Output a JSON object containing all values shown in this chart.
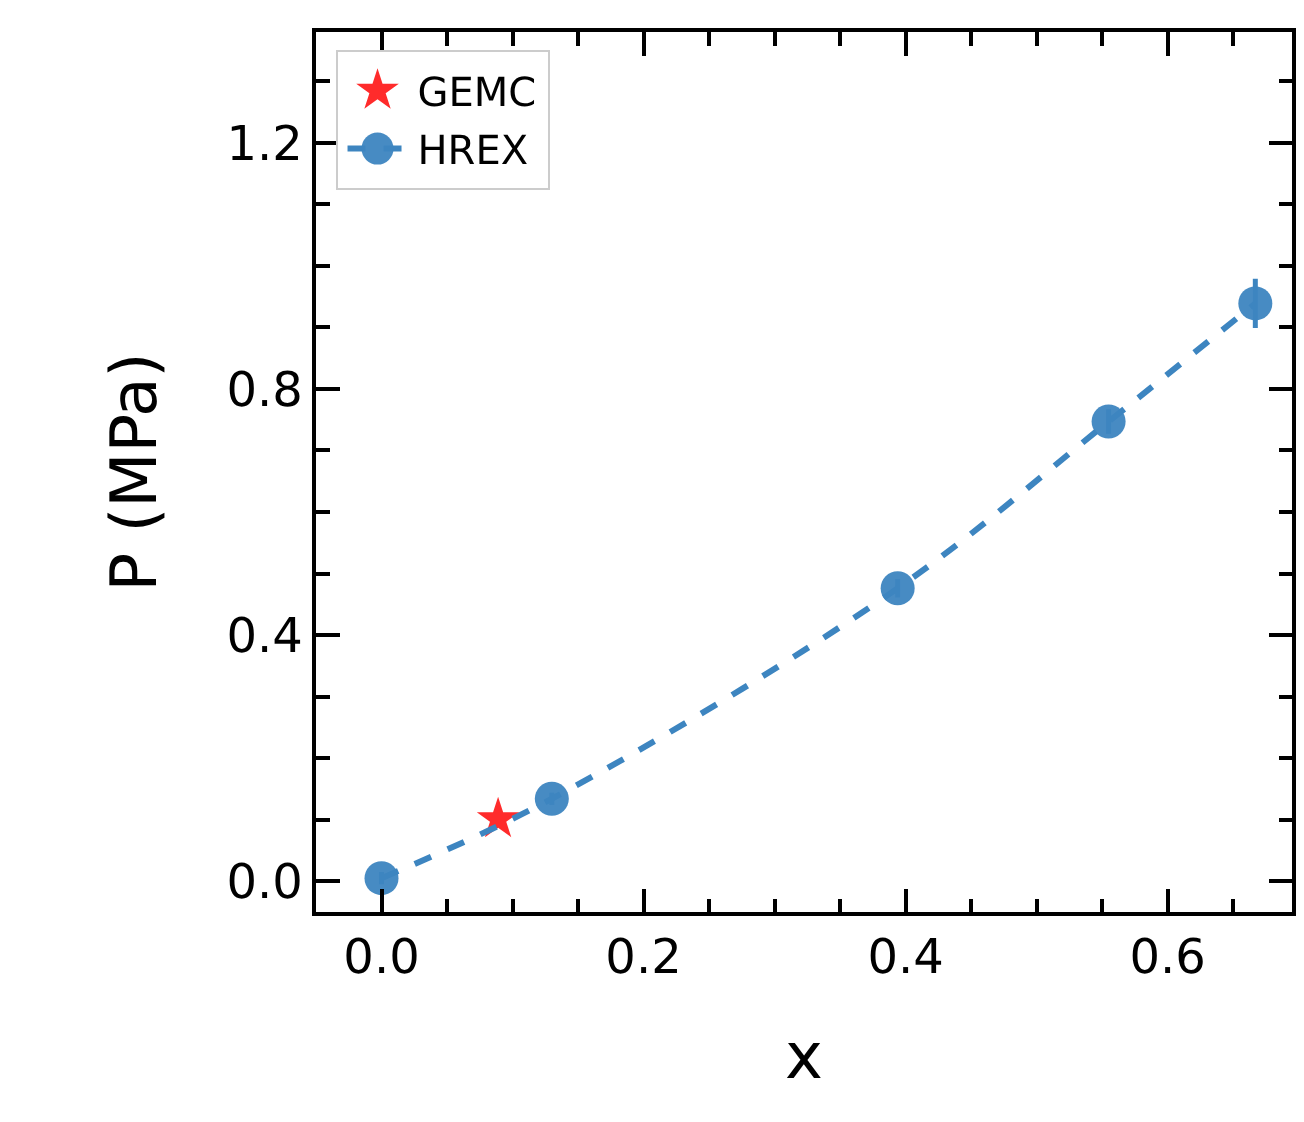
{
  "chart_data": {
    "type": "line",
    "xlabel": "x",
    "ylabel": "P (MPa)",
    "xlim": [
      -0.05,
      0.695
    ],
    "ylim": [
      -0.05,
      1.38
    ],
    "xticks": [
      {
        "value": 0.0,
        "label": "0.0"
      },
      0.2,
      0.4,
      0.6
    ],
    "yticks": [
      {
        "value": 0.0,
        "label": "0.0"
      },
      0.4,
      0.8,
      1.2
    ],
    "legend": "top left",
    "series": [
      {
        "name": "GEMC",
        "type": "scatter",
        "marker": "star",
        "color": "#ff2020",
        "x": [
          0.089
        ],
        "values": [
          0.101
        ]
      },
      {
        "name": "HREX",
        "marker": "circle",
        "line_style": "dashed",
        "color": "#3d85c0",
        "x": [
          0.0,
          0.13,
          0.394,
          0.555,
          0.667
        ],
        "values": [
          0.005,
          0.134,
          0.476,
          0.747,
          0.939
        ],
        "errors": [
          0.01,
          0.01,
          0.015,
          0.02,
          0.04
        ]
      }
    ]
  }
}
